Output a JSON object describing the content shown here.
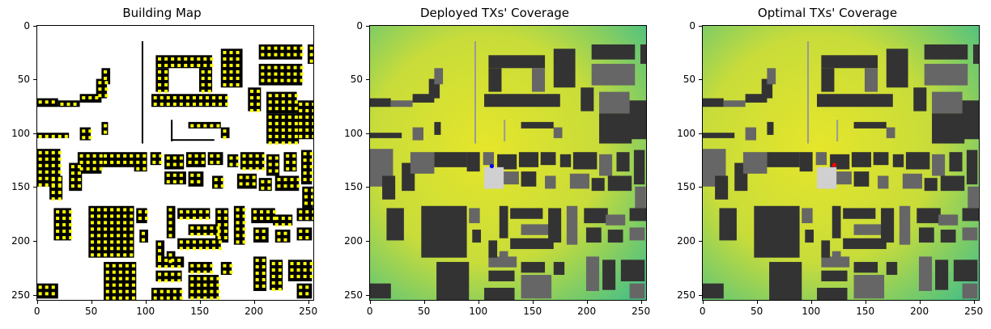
{
  "figure": {
    "panels": [
      {
        "title": "Building Map",
        "kind": "building-map"
      },
      {
        "title": "Deployed TXs' Coverage",
        "kind": "coverage",
        "tx_color": "#0000ff",
        "tx": [
          113,
          131
        ]
      },
      {
        "title": "Optimal TXs' Coverage",
        "kind": "coverage",
        "tx_color": "#ff0000",
        "tx": [
          122,
          130
        ]
      }
    ],
    "x_ticks": [
      "0",
      "50",
      "100",
      "150",
      "200",
      "250"
    ],
    "y_ticks": [
      "0",
      "50",
      "100",
      "150",
      "200",
      "250"
    ]
  },
  "colors": {
    "building_fill": "#000000",
    "antenna": "#ffff00",
    "coverage_base": "#c8dc3a",
    "coverage_high": "#e6e62a",
    "coverage_low": "#4cc183",
    "building_dark": "#333333",
    "building_mid": "#666666",
    "building_light": "#999999"
  }
}
